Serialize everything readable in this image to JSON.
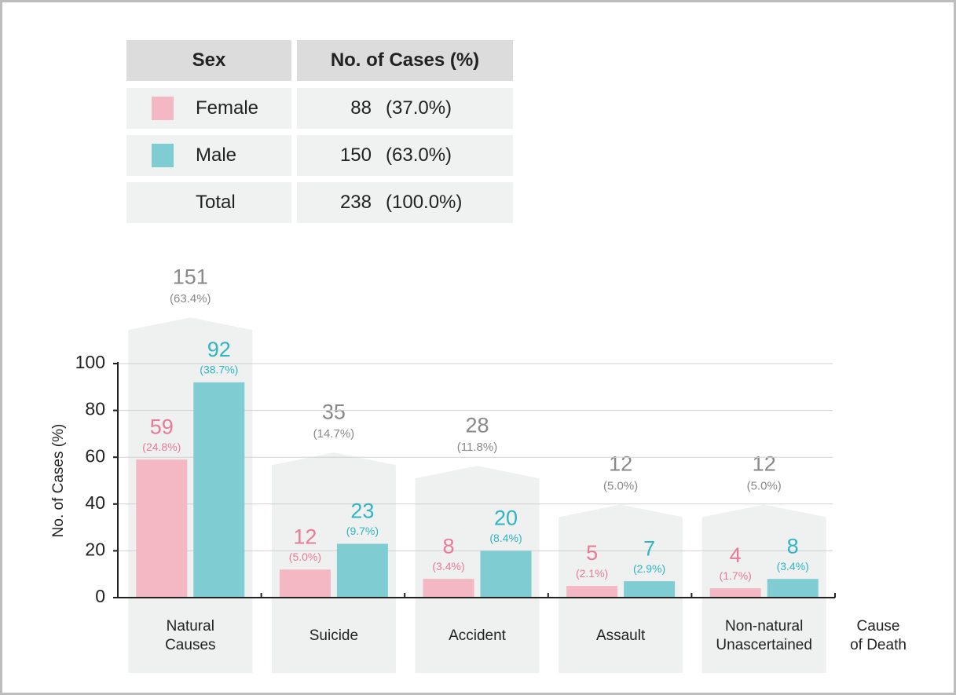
{
  "table": {
    "header": {
      "sex": "Sex",
      "cases": "No. of Cases (%)"
    },
    "rows": [
      {
        "sex": "Female",
        "color": "#f4b8c4",
        "count": 88,
        "share": "(37.0%)"
      },
      {
        "sex": "Male",
        "color": "#7fcdd3",
        "count": 150,
        "share": "(63.0%)"
      },
      {
        "sex": "Total",
        "count": 238,
        "share": "(100.0%)"
      }
    ]
  },
  "chart_data": {
    "type": "bar",
    "ylabel": "No. of Cases (%)",
    "xlabel": "Cause\nof Death",
    "categories": [
      "Natural\nCauses",
      "Suicide",
      "Accident",
      "Assault",
      "Non-natural\nUnascertained"
    ],
    "series": [
      {
        "name": "Female",
        "color": "#f4b8c4",
        "label_color": "#e87b98",
        "values": [
          59,
          12,
          8,
          5,
          4
        ],
        "percent_labels": [
          "(24.8%)",
          "(5.0%)",
          "(3.4%)",
          "(2.1%)",
          "(1.7%)"
        ]
      },
      {
        "name": "Male",
        "color": "#7fcdd3",
        "label_color": "#2fb5c3",
        "values": [
          92,
          23,
          20,
          7,
          8
        ],
        "percent_labels": [
          "(38.7%)",
          "(9.7%)",
          "(8.4%)",
          "(2.9%)",
          "(3.4%)"
        ]
      }
    ],
    "totals": {
      "color": "#eff0f0",
      "label_color": "#888888",
      "values": [
        151,
        35,
        28,
        12,
        12
      ],
      "percent_labels": [
        "(63.4%)",
        "(14.7%)",
        "(11.8%)",
        "(5.0%)",
        "(5.0%)"
      ]
    },
    "ylim": [
      0,
      100
    ],
    "yticks": [
      0,
      20,
      40,
      60,
      80,
      100
    ],
    "grid": true
  }
}
